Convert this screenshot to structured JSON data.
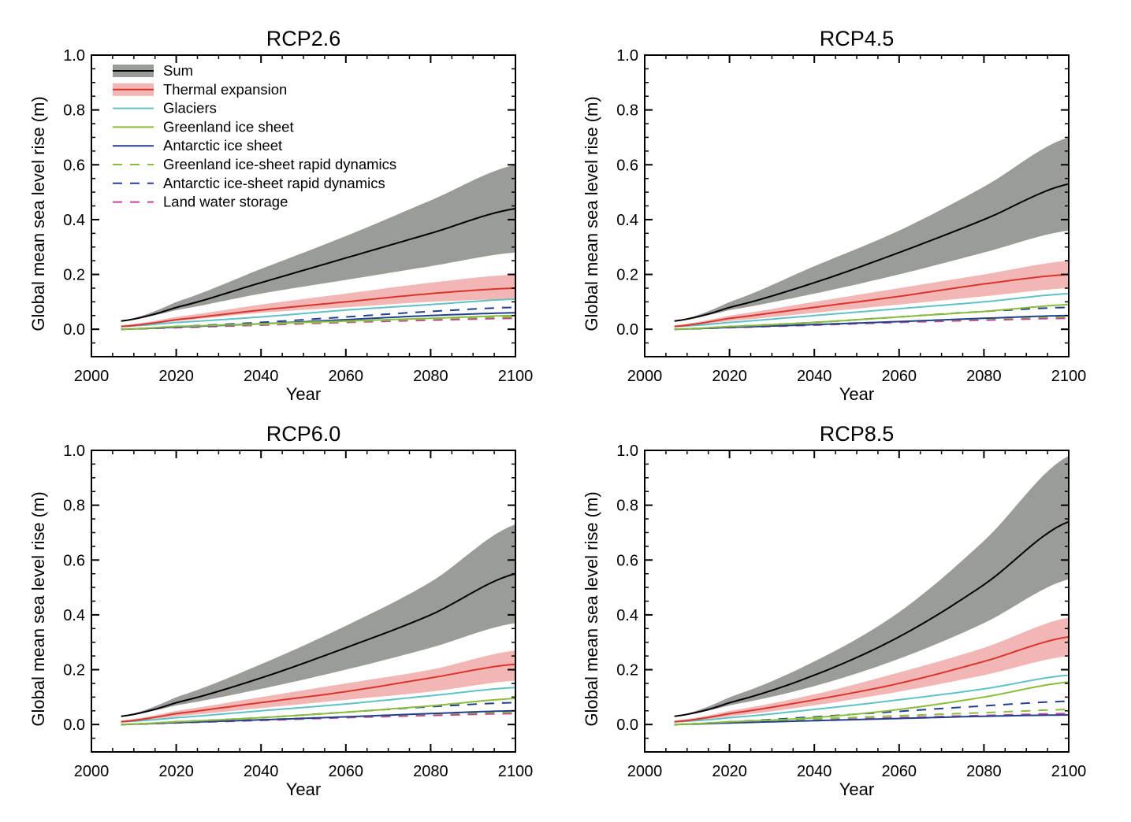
{
  "colors": {
    "sum_band": "#9a9c98",
    "sum_line": "#000000",
    "thermal_band": "#f2b6b4",
    "thermal_line": "#d9352f",
    "glaciers": "#5fc2c7",
    "greenland": "#8bbd3c",
    "antarctic": "#233f8f",
    "greenland_dyn": "#8bbd3c",
    "antarctic_dyn": "#233f8f",
    "land_water": "#c2449a"
  },
  "legend": {
    "items": [
      {
        "label": "Sum",
        "style": "band-line",
        "band": "sum_band",
        "line": "sum_line"
      },
      {
        "label": "Thermal expansion",
        "style": "band-line",
        "band": "thermal_band",
        "line": "thermal_line"
      },
      {
        "label": "Glaciers",
        "style": "solid",
        "line": "glaciers"
      },
      {
        "label": "Greenland ice sheet",
        "style": "solid",
        "line": "greenland"
      },
      {
        "label": "Antarctic ice sheet",
        "style": "solid",
        "line": "antarctic"
      },
      {
        "label": "Greenland ice-sheet rapid dynamics",
        "style": "dashed",
        "line": "greenland_dyn"
      },
      {
        "label": "Antarctic ice-sheet rapid dynamics",
        "style": "dashed",
        "line": "antarctic_dyn"
      },
      {
        "label": "Land water storage",
        "style": "dashed",
        "line": "land_water"
      }
    ]
  },
  "chart_data": [
    {
      "type": "line",
      "title": "RCP2.6",
      "xlabel": "Year",
      "ylabel": "Global mean sea level rise (m)",
      "xlim": [
        2000,
        2100
      ],
      "ylim": [
        -0.1,
        1.0
      ],
      "xticks": [
        "2000",
        "2020",
        "2040",
        "2060",
        "2080",
        "2100"
      ],
      "yticks": [
        "0.0",
        "0.2",
        "0.4",
        "0.6",
        "0.8",
        "1.0"
      ],
      "grid": false,
      "legend": "top-left",
      "x": [
        2007,
        2020,
        2040,
        2060,
        2080,
        2100
      ],
      "series": [
        {
          "name": "Sum",
          "values": [
            0.03,
            0.08,
            0.17,
            0.26,
            0.35,
            0.44
          ],
          "lower": [
            0.03,
            0.07,
            0.13,
            0.18,
            0.23,
            0.28
          ],
          "upper": [
            0.03,
            0.1,
            0.22,
            0.34,
            0.47,
            0.6
          ]
        },
        {
          "name": "Thermal expansion",
          "values": [
            0.01,
            0.035,
            0.07,
            0.1,
            0.13,
            0.15
          ],
          "lower": [
            0.01,
            0.03,
            0.06,
            0.08,
            0.1,
            0.11
          ],
          "upper": [
            0.015,
            0.045,
            0.09,
            0.13,
            0.17,
            0.2
          ]
        },
        {
          "name": "Glaciers",
          "values": [
            0.01,
            0.025,
            0.045,
            0.07,
            0.09,
            0.11
          ]
        },
        {
          "name": "Greenland ice sheet",
          "values": [
            0.0,
            0.01,
            0.02,
            0.03,
            0.04,
            0.05
          ]
        },
        {
          "name": "Antarctic ice sheet",
          "values": [
            0.0,
            0.008,
            0.02,
            0.035,
            0.05,
            0.06
          ]
        },
        {
          "name": "Greenland ice-sheet rapid dynamics",
          "values": [
            0.0,
            0.008,
            0.018,
            0.028,
            0.038,
            0.045
          ]
        },
        {
          "name": "Antarctic ice-sheet rapid dynamics",
          "values": [
            0.0,
            0.01,
            0.025,
            0.045,
            0.065,
            0.08
          ]
        },
        {
          "name": "Land water storage",
          "values": [
            0.0,
            0.006,
            0.015,
            0.025,
            0.033,
            0.04
          ]
        }
      ]
    },
    {
      "type": "line",
      "title": "RCP4.5",
      "xlabel": "Year",
      "ylabel": "Global mean sea level rise (m)",
      "xlim": [
        2000,
        2100
      ],
      "ylim": [
        -0.1,
        1.0
      ],
      "xticks": [
        "2000",
        "2020",
        "2040",
        "2060",
        "2080",
        "2100"
      ],
      "yticks": [
        "0.0",
        "0.2",
        "0.4",
        "0.6",
        "0.8",
        "1.0"
      ],
      "grid": false,
      "x": [
        2007,
        2020,
        2040,
        2060,
        2080,
        2100
      ],
      "series": [
        {
          "name": "Sum",
          "values": [
            0.03,
            0.08,
            0.17,
            0.28,
            0.4,
            0.53
          ],
          "lower": [
            0.03,
            0.07,
            0.13,
            0.2,
            0.28,
            0.36
          ],
          "upper": [
            0.03,
            0.1,
            0.23,
            0.36,
            0.52,
            0.7
          ]
        },
        {
          "name": "Thermal expansion",
          "values": [
            0.01,
            0.04,
            0.08,
            0.12,
            0.165,
            0.2
          ],
          "lower": [
            0.01,
            0.03,
            0.06,
            0.09,
            0.12,
            0.15
          ],
          "upper": [
            0.015,
            0.05,
            0.1,
            0.15,
            0.2,
            0.25
          ]
        },
        {
          "name": "Glaciers",
          "values": [
            0.01,
            0.025,
            0.05,
            0.075,
            0.1,
            0.13
          ]
        },
        {
          "name": "Greenland ice sheet",
          "values": [
            0.0,
            0.01,
            0.025,
            0.045,
            0.065,
            0.09
          ]
        },
        {
          "name": "Antarctic ice sheet",
          "values": [
            0.0,
            0.007,
            0.017,
            0.028,
            0.04,
            0.05
          ]
        },
        {
          "name": "Greenland ice-sheet rapid dynamics",
          "values": [
            0.0,
            0.008,
            0.018,
            0.028,
            0.038,
            0.045
          ]
        },
        {
          "name": "Antarctic ice-sheet rapid dynamics",
          "values": [
            0.0,
            0.01,
            0.025,
            0.045,
            0.065,
            0.08
          ]
        },
        {
          "name": "Land water storage",
          "values": [
            0.0,
            0.006,
            0.015,
            0.025,
            0.033,
            0.04
          ]
        }
      ]
    },
    {
      "type": "line",
      "title": "RCP6.0",
      "xlabel": "Year",
      "ylabel": "Global mean sea level rise (m)",
      "xlim": [
        2000,
        2100
      ],
      "ylim": [
        -0.1,
        1.0
      ],
      "xticks": [
        "2000",
        "2020",
        "2040",
        "2060",
        "2080",
        "2100"
      ],
      "yticks": [
        "0.0",
        "0.2",
        "0.4",
        "0.6",
        "0.8",
        "1.0"
      ],
      "grid": false,
      "x": [
        2007,
        2020,
        2040,
        2060,
        2080,
        2100
      ],
      "series": [
        {
          "name": "Sum",
          "values": [
            0.03,
            0.08,
            0.17,
            0.28,
            0.4,
            0.55
          ],
          "lower": [
            0.03,
            0.07,
            0.13,
            0.2,
            0.28,
            0.37
          ],
          "upper": [
            0.03,
            0.1,
            0.22,
            0.36,
            0.52,
            0.73
          ]
        },
        {
          "name": "Thermal expansion",
          "values": [
            0.01,
            0.04,
            0.08,
            0.12,
            0.17,
            0.22
          ],
          "lower": [
            0.01,
            0.03,
            0.06,
            0.09,
            0.12,
            0.16
          ],
          "upper": [
            0.015,
            0.05,
            0.1,
            0.15,
            0.2,
            0.27
          ]
        },
        {
          "name": "Glaciers",
          "values": [
            0.01,
            0.025,
            0.05,
            0.075,
            0.105,
            0.135
          ]
        },
        {
          "name": "Greenland ice sheet",
          "values": [
            0.0,
            0.01,
            0.025,
            0.045,
            0.068,
            0.095
          ]
        },
        {
          "name": "Antarctic ice sheet",
          "values": [
            0.0,
            0.007,
            0.017,
            0.028,
            0.04,
            0.05
          ]
        },
        {
          "name": "Greenland ice-sheet rapid dynamics",
          "values": [
            0.0,
            0.008,
            0.018,
            0.028,
            0.038,
            0.045
          ]
        },
        {
          "name": "Antarctic ice-sheet rapid dynamics",
          "values": [
            0.0,
            0.01,
            0.025,
            0.045,
            0.065,
            0.08
          ]
        },
        {
          "name": "Land water storage",
          "values": [
            0.0,
            0.006,
            0.015,
            0.025,
            0.033,
            0.04
          ]
        }
      ]
    },
    {
      "type": "line",
      "title": "RCP8.5",
      "xlabel": "Year",
      "ylabel": "Global mean sea level rise (m)",
      "xlim": [
        2000,
        2100
      ],
      "ylim": [
        -0.1,
        1.0
      ],
      "xticks": [
        "2000",
        "2020",
        "2040",
        "2060",
        "2080",
        "2100"
      ],
      "yticks": [
        "0.0",
        "0.2",
        "0.4",
        "0.6",
        "0.8",
        "1.0"
      ],
      "grid": false,
      "x": [
        2007,
        2020,
        2040,
        2060,
        2080,
        2100
      ],
      "series": [
        {
          "name": "Sum",
          "values": [
            0.03,
            0.08,
            0.18,
            0.32,
            0.51,
            0.74
          ],
          "lower": [
            0.03,
            0.07,
            0.14,
            0.24,
            0.37,
            0.53
          ],
          "upper": [
            0.03,
            0.1,
            0.23,
            0.41,
            0.67,
            0.98
          ]
        },
        {
          "name": "Thermal expansion",
          "values": [
            0.01,
            0.04,
            0.09,
            0.15,
            0.23,
            0.32
          ],
          "lower": [
            0.01,
            0.03,
            0.07,
            0.12,
            0.18,
            0.25
          ],
          "upper": [
            0.015,
            0.05,
            0.11,
            0.19,
            0.28,
            0.39
          ]
        },
        {
          "name": "Glaciers",
          "values": [
            0.01,
            0.025,
            0.055,
            0.09,
            0.13,
            0.18
          ]
        },
        {
          "name": "Greenland ice sheet",
          "values": [
            0.0,
            0.01,
            0.025,
            0.055,
            0.1,
            0.155
          ]
        },
        {
          "name": "Antarctic ice sheet",
          "values": [
            0.0,
            0.006,
            0.014,
            0.022,
            0.03,
            0.035
          ]
        },
        {
          "name": "Greenland ice-sheet rapid dynamics",
          "values": [
            0.0,
            0.008,
            0.02,
            0.032,
            0.043,
            0.055
          ]
        },
        {
          "name": "Antarctic ice-sheet rapid dynamics",
          "values": [
            0.0,
            0.01,
            0.028,
            0.048,
            0.068,
            0.085
          ]
        },
        {
          "name": "Land water storage",
          "values": [
            0.0,
            0.006,
            0.015,
            0.025,
            0.033,
            0.04
          ]
        }
      ]
    }
  ]
}
